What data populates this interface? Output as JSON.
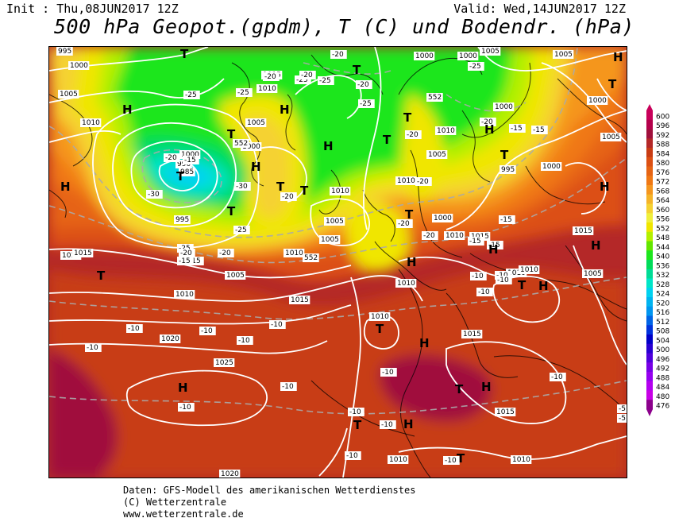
{
  "header": {
    "init_text": "Init : Thu,08JUN2017 12Z",
    "valid_text": "Valid: Wed,14JUN2017 12Z",
    "title": "500 hPa Geopot.(gpdm), T (C) und Bodendr. (hPa)"
  },
  "footer": {
    "line1": "Daten: GFS-Modell des amerikanischen Wetterdienstes",
    "line2": "(C) Wetterzentrale",
    "line3": "www.wetterzentrale.de"
  },
  "legend": {
    "levels": [
      {
        "value": "600",
        "color": "#c8005a"
      },
      {
        "value": "596",
        "color": "#b4004b"
      },
      {
        "value": "592",
        "color": "#a0103c"
      },
      {
        "value": "588",
        "color": "#b42828"
      },
      {
        "value": "584",
        "color": "#c83c14"
      },
      {
        "value": "580",
        "color": "#dc5014"
      },
      {
        "value": "576",
        "color": "#e66414"
      },
      {
        "value": "572",
        "color": "#f07814"
      },
      {
        "value": "568",
        "color": "#f5961e"
      },
      {
        "value": "564",
        "color": "#f5b428"
      },
      {
        "value": "560",
        "color": "#f5d232"
      },
      {
        "value": "556",
        "color": "#f0f03c"
      },
      {
        "value": "552",
        "color": "#f0e600"
      },
      {
        "value": "548",
        "color": "#b4f000"
      },
      {
        "value": "544",
        "color": "#64e600"
      },
      {
        "value": "540",
        "color": "#1ee61e"
      },
      {
        "value": "536",
        "color": "#00dc5a"
      },
      {
        "value": "532",
        "color": "#00dc96"
      },
      {
        "value": "528",
        "color": "#00e6c8"
      },
      {
        "value": "524",
        "color": "#00d2f0"
      },
      {
        "value": "520",
        "color": "#00b4f0"
      },
      {
        "value": "516",
        "color": "#0096f0"
      },
      {
        "value": "512",
        "color": "#0064e6"
      },
      {
        "value": "508",
        "color": "#0032dc"
      },
      {
        "value": "504",
        "color": "#0000c8"
      },
      {
        "value": "500",
        "color": "#2800d2"
      },
      {
        "value": "496",
        "color": "#5000dc"
      },
      {
        "value": "492",
        "color": "#7800e6"
      },
      {
        "value": "488",
        "color": "#9600f0"
      },
      {
        "value": "484",
        "color": "#b400f0"
      },
      {
        "value": "480",
        "color": "#c800e6"
      },
      {
        "value": "476",
        "color": "#8c008c"
      }
    ]
  },
  "map": {
    "pressure_labels": [
      {
        "text": "995"
      },
      {
        "text": "1000"
      },
      {
        "text": "1005"
      },
      {
        "text": "1010"
      },
      {
        "text": "1015"
      },
      {
        "text": "1000"
      },
      {
        "text": "985"
      },
      {
        "text": "990"
      },
      {
        "text": "995"
      },
      {
        "text": "1015"
      },
      {
        "text": "1005"
      },
      {
        "text": "1000"
      },
      {
        "text": "1010"
      },
      {
        "text": "1015"
      },
      {
        "text": "1020"
      },
      {
        "text": "1025"
      },
      {
        "text": "1020"
      },
      {
        "text": "1010"
      },
      {
        "text": "1015"
      },
      {
        "text": "1010"
      },
      {
        "text": "1005"
      },
      {
        "text": "1010"
      },
      {
        "text": "1005"
      },
      {
        "text": "1010"
      },
      {
        "text": "1000"
      },
      {
        "text": "1005"
      },
      {
        "text": "1010"
      },
      {
        "text": "1000"
      },
      {
        "text": "1005"
      },
      {
        "text": "995"
      },
      {
        "text": "1000"
      },
      {
        "text": "1010"
      },
      {
        "text": "1015"
      },
      {
        "text": "1010"
      },
      {
        "text": "1015"
      },
      {
        "text": "1010"
      },
      {
        "text": "1010"
      },
      {
        "text": "1000"
      },
      {
        "text": "1005"
      },
      {
        "text": "1015"
      },
      {
        "text": "1010"
      },
      {
        "text": "1005"
      },
      {
        "text": "1000"
      },
      {
        "text": "1005"
      },
      {
        "text": "1010"
      },
      {
        "text": "1000"
      },
      {
        "text": "1015"
      },
      {
        "text": "1010"
      },
      {
        "text": "1005"
      },
      {
        "text": "552"
      },
      {
        "text": "552"
      },
      {
        "text": "552"
      }
    ],
    "temperature_labels": [
      {
        "text": "-20"
      },
      {
        "text": "-25"
      },
      {
        "text": "-30"
      },
      {
        "text": "-25"
      },
      {
        "text": "-20"
      },
      {
        "text": "-15"
      },
      {
        "text": "-30"
      },
      {
        "text": "-25"
      },
      {
        "text": "-20"
      },
      {
        "text": "-20"
      },
      {
        "text": "-25"
      },
      {
        "text": "-20"
      },
      {
        "text": "-25"
      },
      {
        "text": "-25"
      },
      {
        "text": "-20"
      },
      {
        "text": "-20"
      },
      {
        "text": "-15"
      },
      {
        "text": "-20"
      },
      {
        "text": "-20"
      },
      {
        "text": "-15"
      },
      {
        "text": "-15"
      },
      {
        "text": "-10"
      },
      {
        "text": "-10"
      },
      {
        "text": "-10"
      },
      {
        "text": "-10"
      },
      {
        "text": "-10"
      },
      {
        "text": "-10"
      },
      {
        "text": "-10"
      },
      {
        "text": "-10"
      },
      {
        "text": "-10"
      },
      {
        "text": "-10"
      },
      {
        "text": "-10"
      },
      {
        "text": "-10"
      },
      {
        "text": "-10"
      },
      {
        "text": "-5"
      },
      {
        "text": "-5"
      },
      {
        "text": "-15"
      },
      {
        "text": "-20"
      },
      {
        "text": "-20"
      },
      {
        "text": "-25"
      },
      {
        "text": "-15"
      },
      {
        "text": "-20"
      },
      {
        "text": "-10"
      },
      {
        "text": "-10"
      },
      {
        "text": "-15"
      },
      {
        "text": "-25"
      },
      {
        "text": "-20"
      },
      {
        "text": "-15"
      },
      {
        "text": "-10"
      },
      {
        "text": "-10"
      }
    ],
    "high_symbol": "H",
    "low_symbol": "T"
  }
}
